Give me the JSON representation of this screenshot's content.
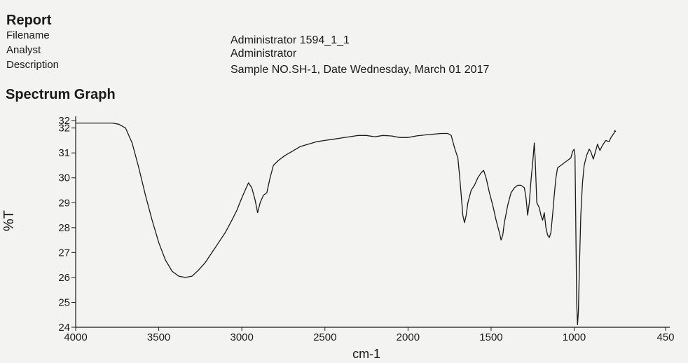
{
  "report": {
    "title": "Report",
    "fields": [
      {
        "label": "Filename",
        "value": "Administrator 1594_1_1"
      },
      {
        "label": "Analyst",
        "value": "Administrator"
      },
      {
        "label": "Description",
        "value": "Sample NO.SH-1, Date Wednesday, March 01 2017"
      }
    ]
  },
  "section_title": "Spectrum Graph",
  "chart_data": {
    "type": "line",
    "title": "",
    "xlabel": "cm-1",
    "ylabel": "%T",
    "xlim": [
      4000,
      450
    ],
    "ylim": [
      24,
      32.3
    ],
    "x_reversed": true,
    "grid": false,
    "x_ticks": [
      4000,
      3500,
      3000,
      2500,
      2000,
      1500,
      1000,
      450
    ],
    "x_tick_labels": [
      "4000",
      "3500",
      "3000",
      "2500",
      "2000",
      "1500",
      "1000",
      "450"
    ],
    "y_ticks": [
      32.3,
      32,
      31,
      30,
      29,
      28,
      27,
      26,
      25,
      24
    ],
    "y_tick_labels": [
      "32",
      "32",
      "31",
      "30",
      "29",
      "28",
      "27",
      "26",
      "25",
      "24"
    ],
    "series": [
      {
        "name": "",
        "color": "#1a1a1a",
        "points": [
          [
            4000,
            32.2
          ],
          [
            3850,
            32.2
          ],
          [
            3780,
            32.2
          ],
          [
            3740,
            32.15
          ],
          [
            3700,
            32.0
          ],
          [
            3660,
            31.4
          ],
          [
            3620,
            30.4
          ],
          [
            3580,
            29.3
          ],
          [
            3540,
            28.3
          ],
          [
            3500,
            27.4
          ],
          [
            3460,
            26.7
          ],
          [
            3420,
            26.25
          ],
          [
            3380,
            26.05
          ],
          [
            3340,
            26.0
          ],
          [
            3300,
            26.05
          ],
          [
            3260,
            26.3
          ],
          [
            3220,
            26.6
          ],
          [
            3180,
            27.0
          ],
          [
            3140,
            27.4
          ],
          [
            3100,
            27.8
          ],
          [
            3060,
            28.3
          ],
          [
            3030,
            28.7
          ],
          [
            3000,
            29.2
          ],
          [
            2980,
            29.5
          ],
          [
            2960,
            29.8
          ],
          [
            2940,
            29.6
          ],
          [
            2920,
            29.1
          ],
          [
            2905,
            28.6
          ],
          [
            2890,
            29.0
          ],
          [
            2870,
            29.3
          ],
          [
            2850,
            29.4
          ],
          [
            2830,
            30.0
          ],
          [
            2810,
            30.5
          ],
          [
            2780,
            30.7
          ],
          [
            2740,
            30.9
          ],
          [
            2700,
            31.05
          ],
          [
            2650,
            31.25
          ],
          [
            2600,
            31.35
          ],
          [
            2550,
            31.45
          ],
          [
            2500,
            31.5
          ],
          [
            2450,
            31.55
          ],
          [
            2400,
            31.6
          ],
          [
            2350,
            31.65
          ],
          [
            2300,
            31.7
          ],
          [
            2250,
            31.7
          ],
          [
            2200,
            31.65
          ],
          [
            2150,
            31.7
          ],
          [
            2100,
            31.68
          ],
          [
            2050,
            31.62
          ],
          [
            2000,
            31.62
          ],
          [
            1950,
            31.68
          ],
          [
            1900,
            31.72
          ],
          [
            1850,
            31.75
          ],
          [
            1800,
            31.78
          ],
          [
            1760,
            31.78
          ],
          [
            1740,
            31.7
          ],
          [
            1720,
            31.2
          ],
          [
            1700,
            30.8
          ],
          [
            1690,
            30.1
          ],
          [
            1680,
            29.3
          ],
          [
            1670,
            28.5
          ],
          [
            1660,
            28.2
          ],
          [
            1650,
            28.5
          ],
          [
            1640,
            29.0
          ],
          [
            1620,
            29.5
          ],
          [
            1600,
            29.7
          ],
          [
            1580,
            30.0
          ],
          [
            1560,
            30.2
          ],
          [
            1545,
            30.3
          ],
          [
            1530,
            30.0
          ],
          [
            1510,
            29.4
          ],
          [
            1490,
            28.9
          ],
          [
            1470,
            28.3
          ],
          [
            1450,
            27.8
          ],
          [
            1440,
            27.5
          ],
          [
            1430,
            27.7
          ],
          [
            1420,
            28.2
          ],
          [
            1400,
            28.9
          ],
          [
            1380,
            29.4
          ],
          [
            1360,
            29.6
          ],
          [
            1340,
            29.7
          ],
          [
            1320,
            29.7
          ],
          [
            1300,
            29.6
          ],
          [
            1290,
            29.2
          ],
          [
            1280,
            28.5
          ],
          [
            1270,
            29.0
          ],
          [
            1260,
            29.9
          ],
          [
            1250,
            30.6
          ],
          [
            1240,
            31.4
          ],
          [
            1235,
            30.8
          ],
          [
            1225,
            29.0
          ],
          [
            1210,
            28.8
          ],
          [
            1200,
            28.5
          ],
          [
            1190,
            28.3
          ],
          [
            1180,
            28.6
          ],
          [
            1170,
            28.0
          ],
          [
            1160,
            27.7
          ],
          [
            1150,
            27.6
          ],
          [
            1140,
            27.8
          ],
          [
            1130,
            28.5
          ],
          [
            1120,
            29.3
          ],
          [
            1110,
            30.0
          ],
          [
            1100,
            30.4
          ],
          [
            1080,
            30.5
          ],
          [
            1060,
            30.6
          ],
          [
            1040,
            30.7
          ],
          [
            1020,
            30.8
          ],
          [
            1010,
            31.05
          ],
          [
            1000,
            31.15
          ],
          [
            995,
            30.9
          ],
          [
            990,
            28.0
          ],
          [
            985,
            25.0
          ],
          [
            980,
            24.1
          ],
          [
            975,
            24.6
          ],
          [
            968,
            26.5
          ],
          [
            960,
            28.5
          ],
          [
            950,
            29.8
          ],
          [
            940,
            30.5
          ],
          [
            925,
            30.9
          ],
          [
            910,
            31.15
          ],
          [
            900,
            31.05
          ],
          [
            885,
            30.75
          ],
          [
            870,
            31.1
          ],
          [
            860,
            31.35
          ],
          [
            845,
            31.1
          ],
          [
            830,
            31.3
          ],
          [
            810,
            31.5
          ],
          [
            790,
            31.45
          ],
          [
            780,
            31.6
          ],
          [
            765,
            31.75
          ],
          [
            760,
            31.8
          ],
          [
            755,
            31.9
          ],
          [
            750,
            31.85
          ]
        ]
      }
    ]
  }
}
